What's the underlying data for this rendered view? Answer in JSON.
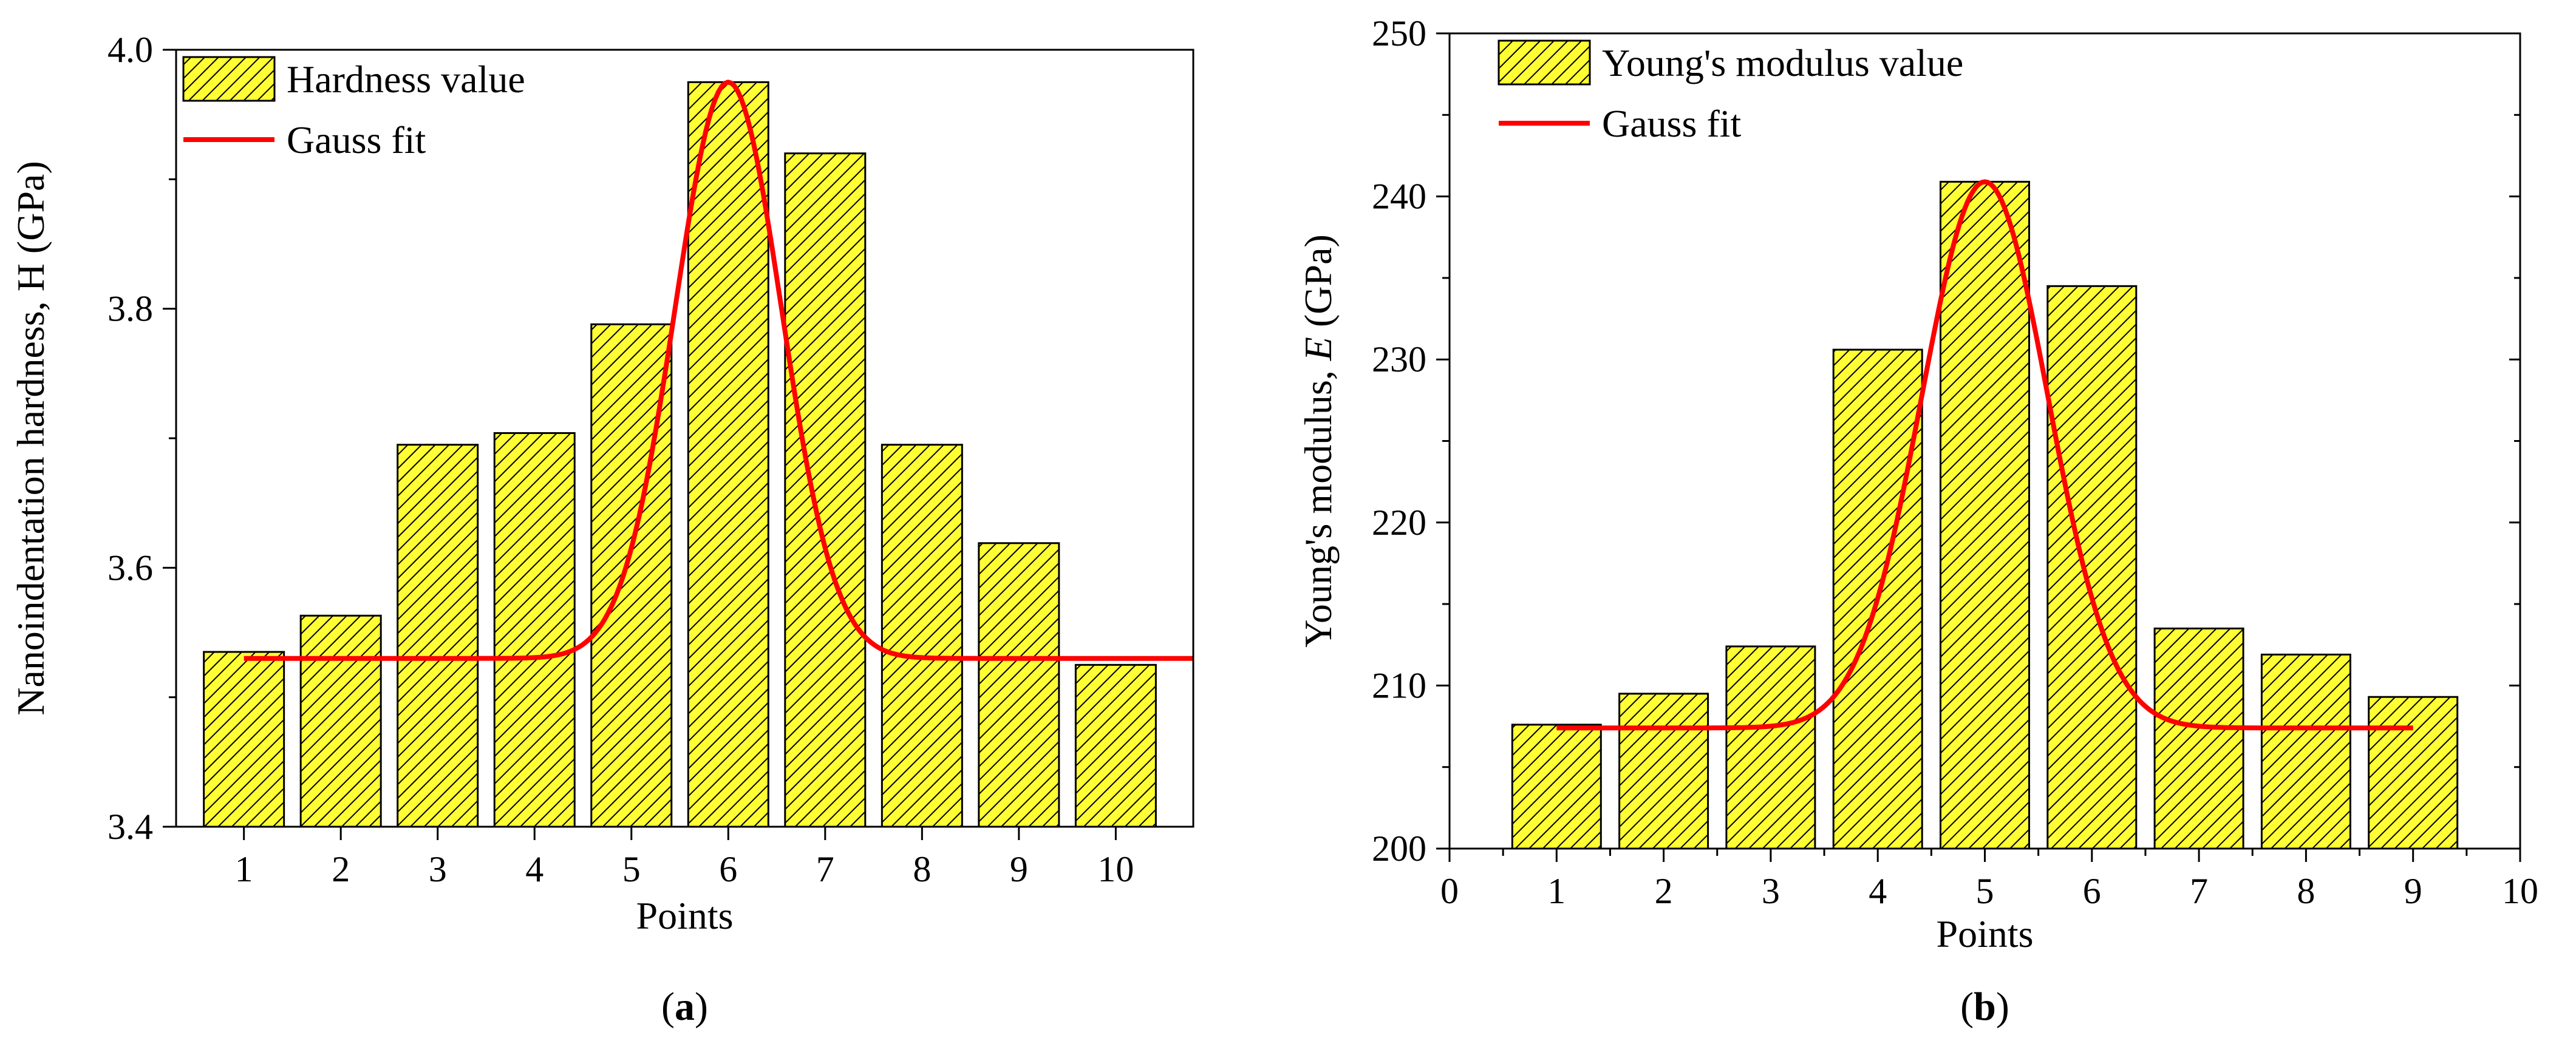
{
  "colors": {
    "bar_fill": "#ffff33",
    "hatch": "#000000",
    "fit_line": "#ff0000",
    "axis": "#000000"
  },
  "chart_data": [
    {
      "type": "bar",
      "panel": "a",
      "xlabel": "Points",
      "ylabel": "Nanoindentation hardness, H (GPa)",
      "ylabel_parts": [
        "Nanoindentation hardness, H (GPa)"
      ],
      "ylim": [
        3.4,
        4.0
      ],
      "xlim": [
        0.3,
        10.8
      ],
      "xticks": [
        1,
        2,
        3,
        4,
        5,
        6,
        7,
        8,
        9,
        10
      ],
      "yticks": [
        3.4,
        3.6,
        3.8,
        4.0
      ],
      "ytick_labels": [
        "3.4",
        "3.6",
        "3.8",
        "4.0"
      ],
      "categories": [
        1,
        2,
        3,
        4,
        5,
        6,
        7,
        8,
        9,
        10
      ],
      "series": [
        {
          "name": "Hardness value",
          "kind": "bar",
          "values": [
            3.535,
            3.563,
            3.695,
            3.704,
            3.788,
            3.975,
            3.92,
            3.695,
            3.619,
            3.525
          ]
        },
        {
          "name": "Gauss fit",
          "kind": "line",
          "model": {
            "y0": 3.53,
            "A": 0.445,
            "xc": 6.0,
            "w": 1.1
          },
          "x_range": [
            1,
            10.8
          ]
        }
      ],
      "legend": [
        "Hardness value",
        "Gauss fit"
      ],
      "legend_position": "top-left",
      "panel_label": [
        "(",
        "a",
        ")"
      ]
    },
    {
      "type": "bar",
      "panel": "b",
      "xlabel": "Points",
      "ylabel": "Young's modulus, E (GPa)",
      "ylabel_parts": [
        "Young's modulus, ",
        "E",
        " (GPa)"
      ],
      "ylim": [
        200,
        250
      ],
      "xlim": [
        0,
        10
      ],
      "xticks": [
        0,
        1,
        2,
        3,
        4,
        5,
        6,
        7,
        8,
        9,
        10
      ],
      "yticks": [
        200,
        210,
        220,
        230,
        240,
        250
      ],
      "ytick_labels": [
        "200",
        "210",
        "220",
        "230",
        "240",
        "250"
      ],
      "categories": [
        1,
        2,
        3,
        4,
        5,
        6,
        7,
        8,
        9
      ],
      "series": [
        {
          "name": "Young's modulus value",
          "kind": "bar",
          "values": [
            207.6,
            209.5,
            212.4,
            230.6,
            240.9,
            234.5,
            213.5,
            211.9,
            209.3
          ]
        },
        {
          "name": "Gauss fit",
          "kind": "line",
          "model": {
            "y0": 207.4,
            "A": 33.5,
            "xc": 5.0,
            "w": 1.18
          },
          "x_range": [
            1,
            9
          ]
        }
      ],
      "legend": [
        "Young's modulus value",
        "Gauss fit"
      ],
      "legend_position": "top-left",
      "panel_label": [
        "(",
        "b",
        ")"
      ]
    }
  ]
}
